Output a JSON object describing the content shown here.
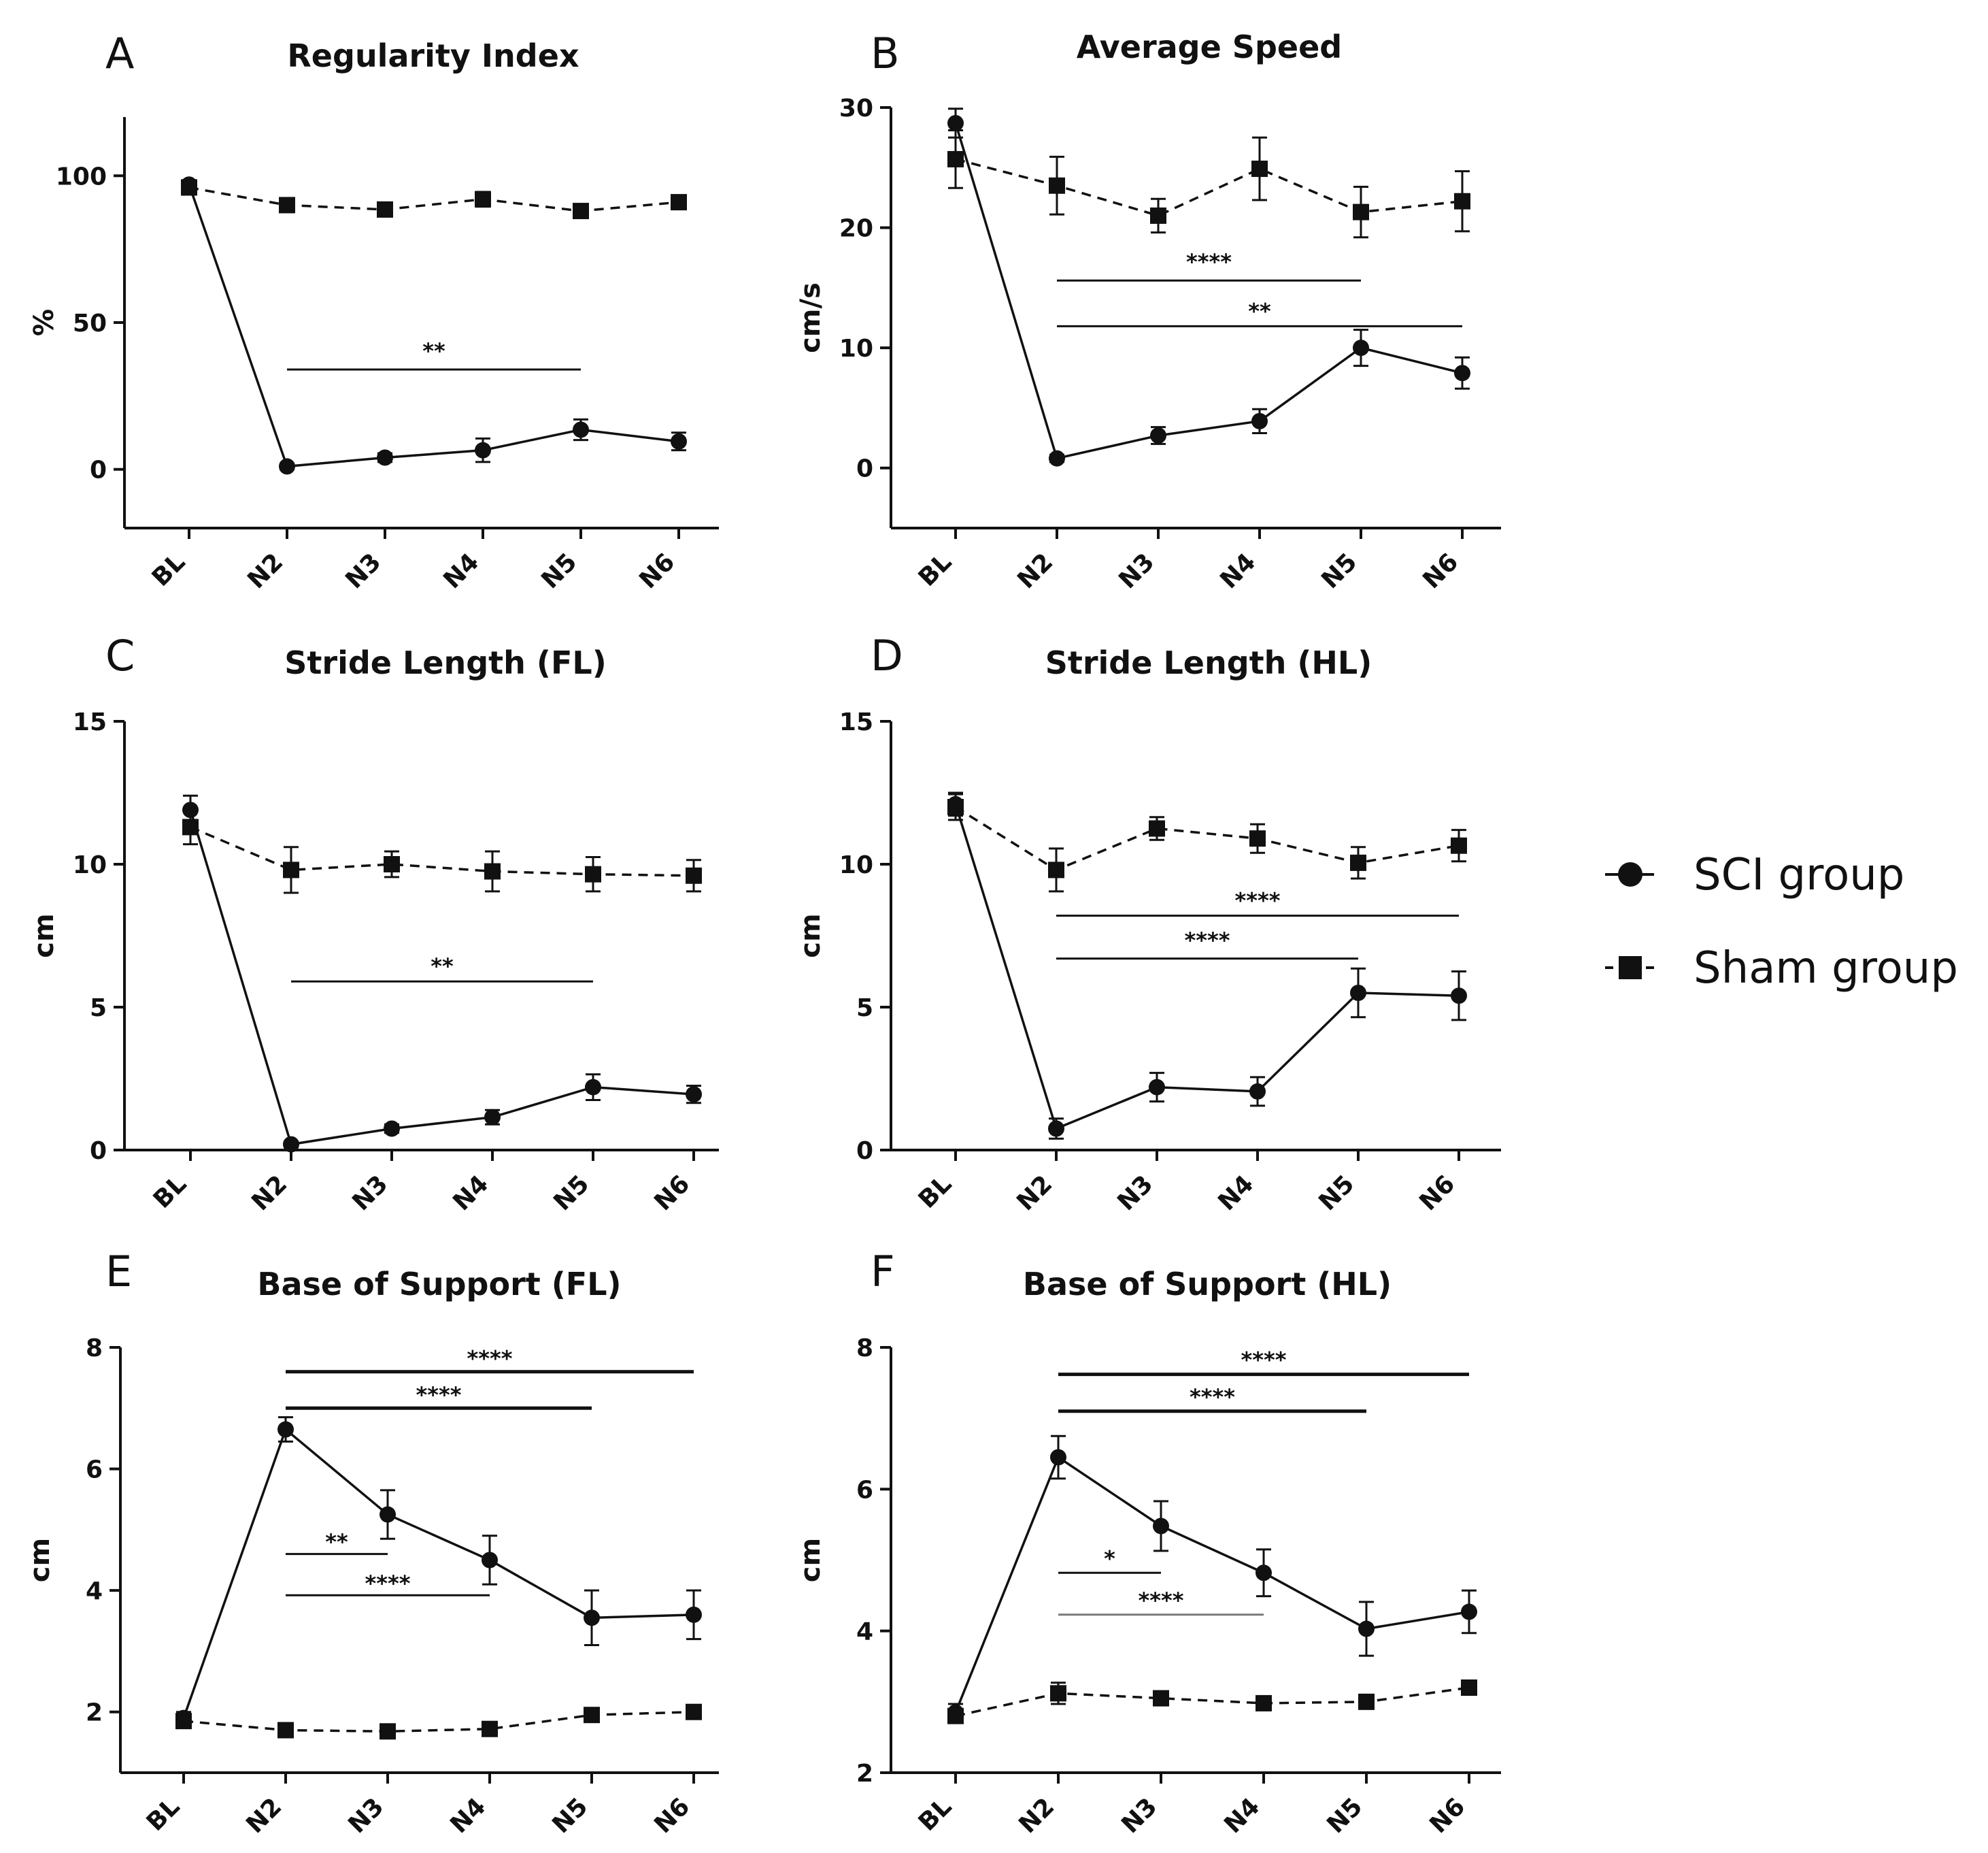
{
  "figure": {
    "colors": {
      "ink": "#111111",
      "grey_bar": "#7a7a7a",
      "background": "#ffffff"
    }
  },
  "legend": {
    "items": [
      {
        "label": "SCI group",
        "marker": "circle",
        "line": "solid"
      },
      {
        "label": "Sham group",
        "marker": "square",
        "line": "dashed"
      }
    ]
  },
  "chart_data": [
    {
      "panel": "A",
      "type": "line",
      "title": "Regularity Index",
      "xlabel": "",
      "ylabel": "%",
      "categories": [
        "BL",
        "N2",
        "N3",
        "N4",
        "N5",
        "N6"
      ],
      "ylim": [
        -20,
        120
      ],
      "yticks": [
        0,
        50,
        100
      ],
      "series": [
        {
          "name": "SCI group",
          "values": [
            97,
            1,
            4,
            6.5,
            13.5,
            9.5
          ],
          "errors": [
            1.5,
            1,
            1.5,
            4,
            3.5,
            3
          ]
        },
        {
          "name": "Sham group",
          "values": [
            96,
            90,
            88.5,
            92,
            88,
            91
          ],
          "errors": [
            2,
            2,
            2,
            2.5,
            1.5,
            1.5
          ]
        }
      ],
      "significance": [
        {
          "from": "N2",
          "to": "N5",
          "label": "**",
          "level": 34,
          "label_level": 41
        }
      ]
    },
    {
      "panel": "B",
      "type": "line",
      "title": "Average Speed",
      "xlabel": "",
      "ylabel": "cm/s",
      "categories": [
        "BL",
        "N2",
        "N3",
        "N4",
        "N5",
        "N6"
      ],
      "ylim": [
        -5,
        30
      ],
      "yticks": [
        0,
        10,
        20,
        30
      ],
      "series": [
        {
          "name": "SCI group",
          "values": [
            28.7,
            0.8,
            2.7,
            3.9,
            10,
            7.9
          ],
          "errors": [
            1.2,
            0.3,
            0.7,
            1,
            1.5,
            1.3
          ]
        },
        {
          "name": "Sham group",
          "values": [
            25.7,
            23.5,
            21,
            24.9,
            21.3,
            22.2
          ],
          "errors": [
            2.4,
            2.4,
            1.4,
            2.6,
            2.1,
            2.5
          ]
        }
      ],
      "significance": [
        {
          "from": "N2",
          "to": "N5",
          "label": "****",
          "level": 15.6,
          "label_level": 17.3
        },
        {
          "from": "N2",
          "to": "N6",
          "label": "**",
          "level": 11.8,
          "label_level": 13.2
        }
      ]
    },
    {
      "panel": "C",
      "type": "line",
      "title": "Stride Length (FL)",
      "xlabel": "",
      "ylabel": "cm",
      "categories": [
        "BL",
        "N2",
        "N3",
        "N4",
        "N5",
        "N6"
      ],
      "ylim": [
        0,
        15
      ],
      "yticks": [
        0,
        5,
        10,
        15
      ],
      "series": [
        {
          "name": "SCI group",
          "values": [
            11.9,
            0.2,
            0.75,
            1.15,
            2.2,
            1.95
          ],
          "errors": [
            0.5,
            0.1,
            0.15,
            0.25,
            0.45,
            0.3
          ]
        },
        {
          "name": "Sham group",
          "values": [
            11.3,
            9.8,
            10,
            9.75,
            9.65,
            9.6
          ],
          "errors": [
            0.6,
            0.8,
            0.45,
            0.7,
            0.6,
            0.55
          ]
        }
      ],
      "significance": [
        {
          "from": "N2",
          "to": "N5",
          "label": "**",
          "level": 5.9,
          "label_level": 6.5
        }
      ]
    },
    {
      "panel": "D",
      "type": "line",
      "title": "Stride Length (HL)",
      "xlabel": "",
      "ylabel": "cm",
      "categories": [
        "BL",
        "N2",
        "N3",
        "N4",
        "N5",
        "N6"
      ],
      "ylim": [
        0,
        15
      ],
      "yticks": [
        0,
        5,
        10,
        15
      ],
      "series": [
        {
          "name": "SCI group",
          "values": [
            12.1,
            0.75,
            2.2,
            2.05,
            5.5,
            5.4
          ],
          "errors": [
            0.4,
            0.35,
            0.5,
            0.5,
            0.85,
            0.85
          ]
        },
        {
          "name": "Sham group",
          "values": [
            12,
            9.8,
            11.25,
            10.9,
            10.05,
            10.65
          ],
          "errors": [
            0.45,
            0.75,
            0.4,
            0.5,
            0.55,
            0.55
          ]
        }
      ],
      "significance": [
        {
          "from": "N2",
          "to": "N6",
          "label": "****",
          "level": 8.2,
          "label_level": 8.8
        },
        {
          "from": "N2",
          "to": "N5",
          "label": "****",
          "level": 6.7,
          "label_level": 7.4
        }
      ]
    },
    {
      "panel": "E",
      "type": "line",
      "title": "Base of Support (FL)",
      "xlabel": "",
      "ylabel": "cm",
      "categories": [
        "BL",
        "N2",
        "N3",
        "N4",
        "N5",
        "N6"
      ],
      "ylim": [
        1,
        8
      ],
      "yticks": [
        2,
        4,
        6,
        8
      ],
      "series": [
        {
          "name": "SCI group",
          "values": [
            1.9,
            6.65,
            5.25,
            4.5,
            3.55,
            3.6
          ],
          "errors": [
            0.1,
            0.2,
            0.4,
            0.4,
            0.45,
            0.4
          ]
        },
        {
          "name": "Sham group",
          "values": [
            1.85,
            1.7,
            1.68,
            1.72,
            1.95,
            2
          ],
          "errors": [
            0.1,
            0.08,
            0.08,
            0.08,
            0.08,
            0.08
          ]
        }
      ],
      "significance": [
        {
          "from": "N2",
          "to": "N6",
          "label": "****",
          "level": 7.6,
          "label_level": 7.85
        },
        {
          "from": "N2",
          "to": "N5",
          "label": "****",
          "level": 7.0,
          "label_level": 7.25
        },
        {
          "from": "N2",
          "to": "N3",
          "label": "**",
          "level": 4.6,
          "label_level": 4.83
        },
        {
          "from": "N2",
          "to": "N4",
          "label": "****",
          "level": 3.92,
          "label_level": 4.15
        }
      ]
    },
    {
      "panel": "F",
      "type": "line",
      "title": "Base of Support (HL)",
      "xlabel": "",
      "ylabel": "cm",
      "categories": [
        "BL",
        "N2",
        "N3",
        "N4",
        "N5",
        "N6"
      ],
      "ylim": [
        2,
        8
      ],
      "yticks": [
        2,
        4,
        6,
        8
      ],
      "series": [
        {
          "name": "SCI group",
          "values": [
            2.85,
            6.45,
            5.48,
            4.82,
            4.03,
            4.27
          ],
          "errors": [
            0.12,
            0.3,
            0.35,
            0.33,
            0.38,
            0.3
          ]
        },
        {
          "name": "Sham group",
          "values": [
            2.8,
            3.12,
            3.05,
            2.98,
            3,
            3.2
          ],
          "errors": [
            0.07,
            0.15,
            0.07,
            0.07,
            0.06,
            0.08
          ]
        }
      ],
      "significance": [
        {
          "from": "N2",
          "to": "N6",
          "label": "****",
          "level": 7.62,
          "label_level": 7.85
        },
        {
          "from": "N2",
          "to": "N5",
          "label": "****",
          "level": 7.1,
          "label_level": 7.33
        },
        {
          "from": "N2",
          "to": "N3",
          "label": "*",
          "level": 4.82,
          "label_level": 5.05
        },
        {
          "from": "N2",
          "to": "N4",
          "label": "****",
          "level": 4.23,
          "label_level": 4.46
        }
      ]
    }
  ]
}
